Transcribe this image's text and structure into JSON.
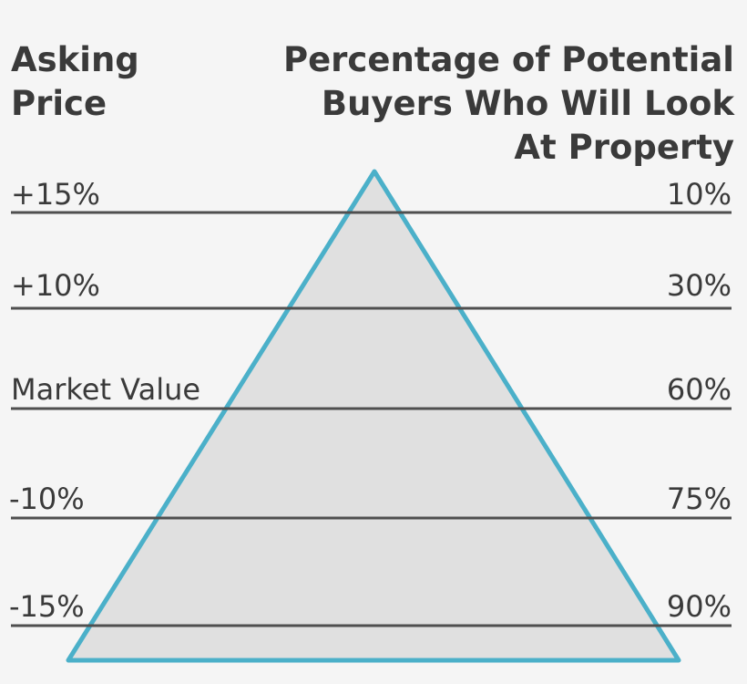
{
  "left_header": [
    "Asking",
    "Price"
  ],
  "right_header": [
    "Percentage of Potential",
    "Buyers Who Will Look",
    "At Property"
  ],
  "rows": [
    {
      "asking_price": "+15%",
      "buyers": "10%"
    },
    {
      "asking_price": "+10%",
      "buyers": "30%"
    },
    {
      "asking_price": "Market Value",
      "buyers": "60%"
    },
    {
      "asking_price": "-10%",
      "buyers": "75%"
    },
    {
      "asking_price": "-15%",
      "buyers": "90%"
    }
  ]
}
